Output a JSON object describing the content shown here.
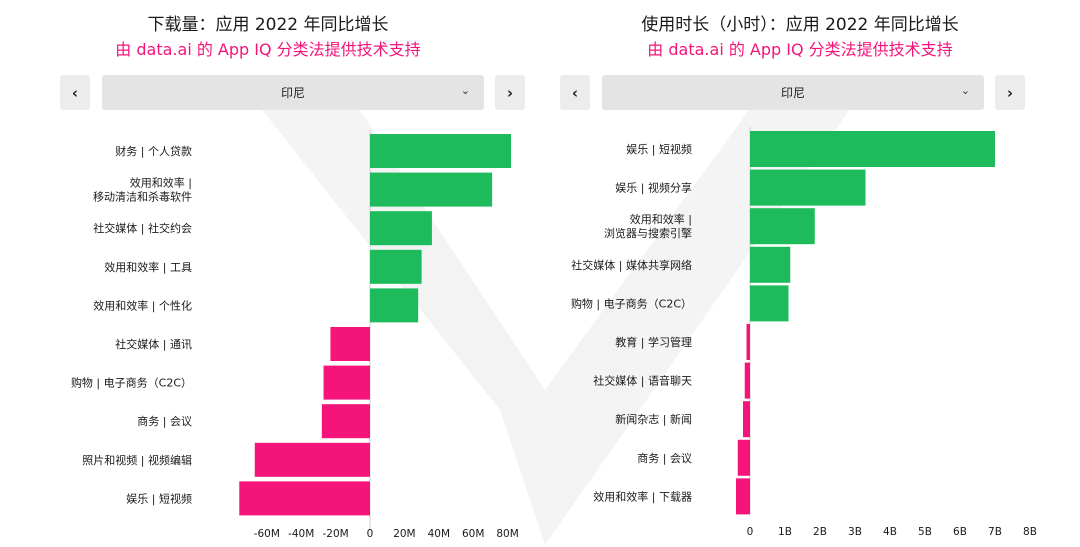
{
  "chart_data": [
    {
      "type": "bar",
      "orientation": "horizontal",
      "title": "下载量：应用 2022 年同比增长",
      "subtitle": "由 data.ai 的 App IQ 分类法提供技术支持",
      "selector": {
        "prev_label": "‹",
        "next_label": "›",
        "value": "印尼",
        "chevron": "⌄"
      },
      "categories": [
        [
          "财务 | 个人贷款"
        ],
        [
          "效用和效率 |",
          "移动清洁和杀毒软件"
        ],
        [
          "社交媒体 | 社交约会"
        ],
        [
          "效用和效率 | 工具"
        ],
        [
          "效用和效率 | 个性化"
        ],
        [
          "社交媒体 | 通讯"
        ],
        [
          "购物 | 电子商务（C2C）"
        ],
        [
          "商务 | 会议"
        ],
        [
          "照片和视频 | 视频编辑"
        ],
        [
          "娱乐 | 短视频"
        ]
      ],
      "values": [
        82,
        71,
        36,
        30,
        28,
        -23,
        -27,
        -28,
        -67,
        -76
      ],
      "xlim": [
        -77,
        87
      ],
      "ticks": [
        -60,
        -40,
        -20,
        0,
        20,
        40,
        60,
        80
      ],
      "tick_labels": [
        "-60M",
        "-40M",
        "-20M",
        "0",
        "20M",
        "40M",
        "60M",
        "80M"
      ],
      "colors": {
        "positive": "#1dbb5c",
        "negative": "#f5147a"
      }
    },
    {
      "type": "bar",
      "orientation": "horizontal",
      "title": "使用时长（小时）：应用 2022 年同比增长",
      "subtitle": "由 data.ai 的 App IQ 分类法提供技术支持",
      "selector": {
        "prev_label": "‹",
        "next_label": "›",
        "value": "印尼",
        "chevron": "⌄"
      },
      "categories": [
        [
          "娱乐 | 短视频"
        ],
        [
          "娱乐 | 视频分享"
        ],
        [
          "效用和效率 |",
          "浏览器与搜索引擎"
        ],
        [
          "社交媒体 | 媒体共享网络"
        ],
        [
          "购物 | 电子商务（C2C）"
        ],
        [
          "教育 | 学习管理"
        ],
        [
          "社交媒体 | 语音聊天"
        ],
        [
          "新闻杂志 | 新闻"
        ],
        [
          "商务 | 会议"
        ],
        [
          "效用和效率 | 下载器"
        ]
      ],
      "values": [
        7.0,
        3.3,
        1.85,
        1.15,
        1.1,
        -0.1,
        -0.15,
        -0.2,
        -0.35,
        -0.4
      ],
      "xlim": [
        -0.45,
        8.2
      ],
      "ticks": [
        0,
        1,
        2,
        3,
        4,
        5,
        6,
        7,
        8
      ],
      "tick_labels": [
        "0",
        "1B",
        "2B",
        "3B",
        "4B",
        "5B",
        "6B",
        "7B",
        "8B"
      ],
      "colors": {
        "positive": "#1dbb5c",
        "negative": "#f5147a"
      }
    }
  ]
}
